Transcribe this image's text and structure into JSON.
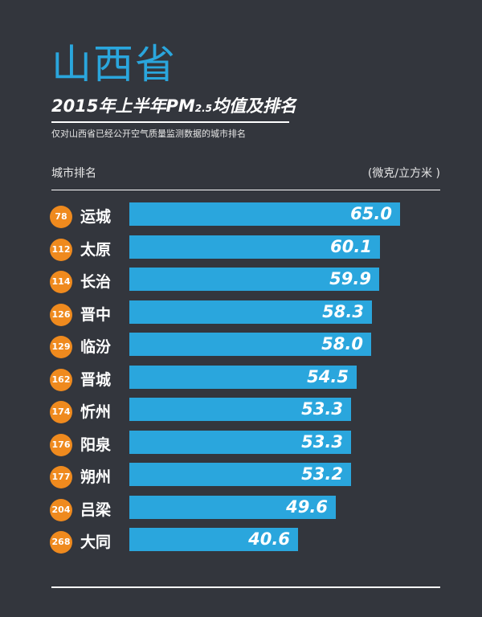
{
  "province": "山西省",
  "subtitle": {
    "main": "2015年上半年PM",
    "sub": "2.5",
    "tail": "均值及排名"
  },
  "note": "仅对山西省已经公开空气质量监测数据的城市排名",
  "columns": {
    "left": "城市排名",
    "right": "(微克/立方米 )"
  },
  "colors": {
    "background": "#33363d",
    "bar": "#2aa6dd",
    "rank_badge": "#ef8a1e",
    "title": "#2aa6dd"
  },
  "chart_data": {
    "type": "bar",
    "orientation": "horizontal",
    "title": "2015年上半年PM2.5均值及排名",
    "xlabel": "(微克/立方米 )",
    "ylabel": "城市排名",
    "xlim": [
      0,
      65.0
    ],
    "grid": false,
    "categories": [
      "运城",
      "太原",
      "长治",
      "晋中",
      "临汾",
      "晋城",
      "忻州",
      "阳泉",
      "朔州",
      "吕梁",
      "大同"
    ],
    "ranks": [
      "78",
      "112",
      "114",
      "126",
      "129",
      "162",
      "174",
      "176",
      "177",
      "204",
      "268"
    ],
    "values": [
      65.0,
      60.1,
      59.9,
      58.3,
      58.0,
      54.5,
      53.3,
      53.3,
      53.2,
      49.6,
      40.6
    ]
  }
}
